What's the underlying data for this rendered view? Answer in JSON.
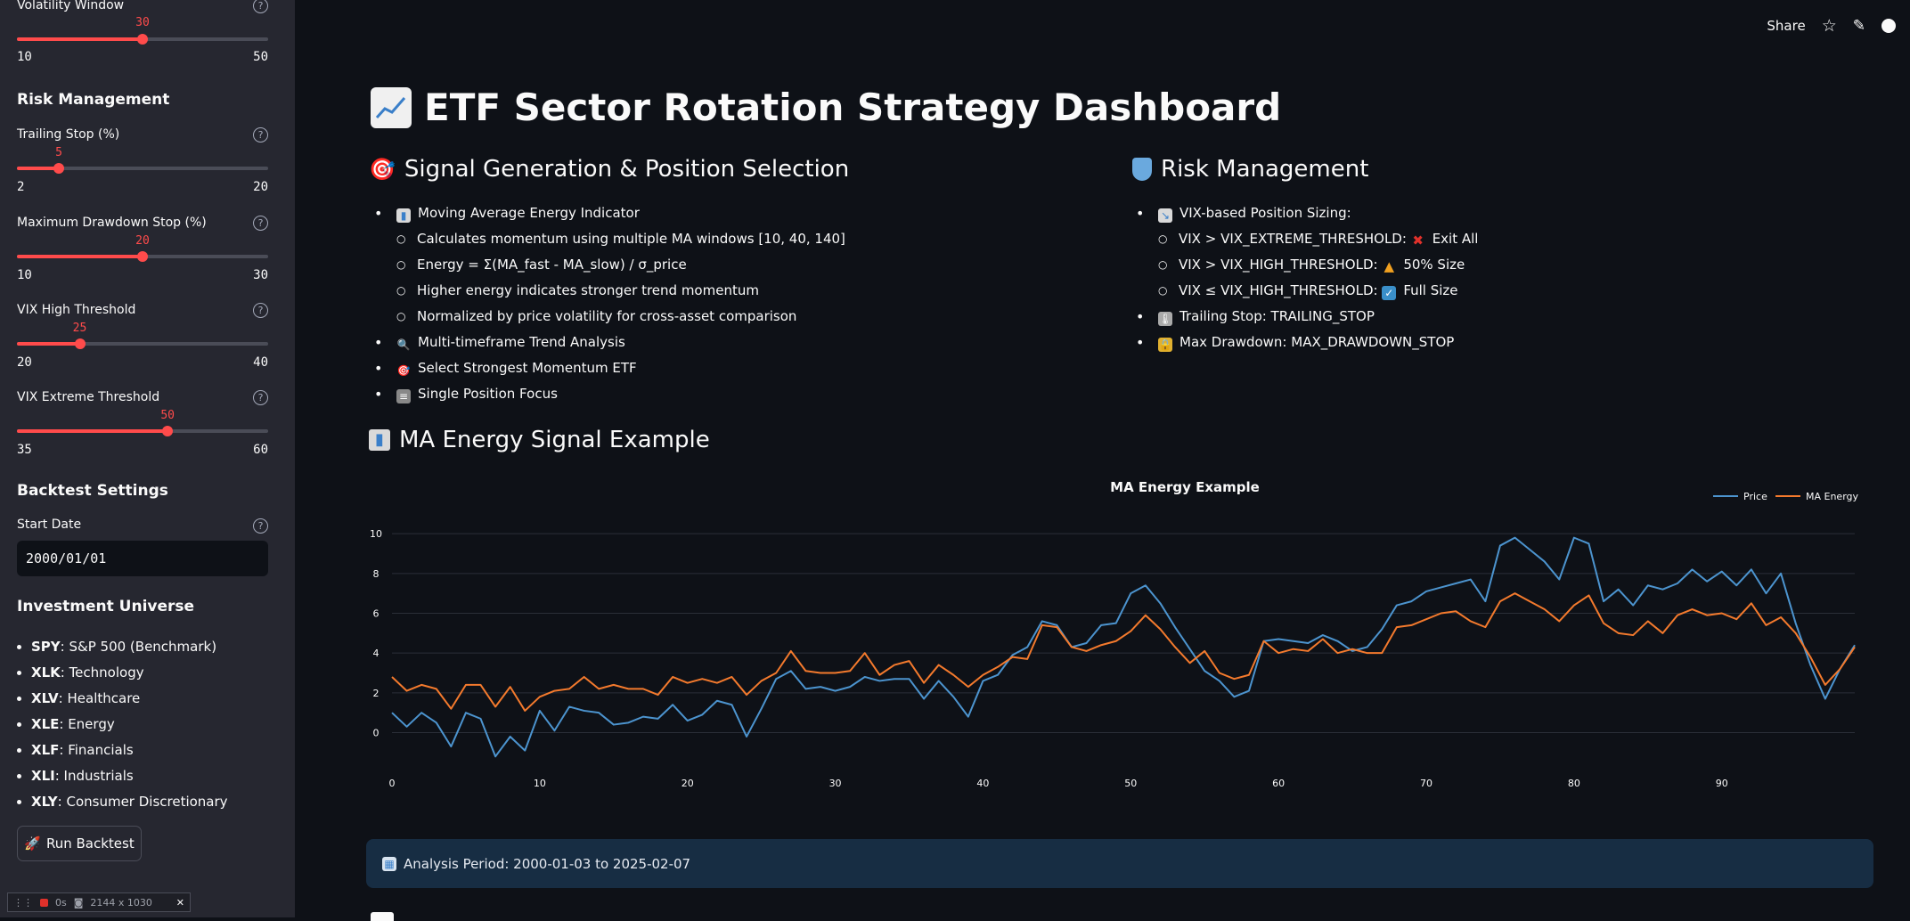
{
  "sidebar": {
    "volatility_window": {
      "label": "Volatility Window",
      "value": "30",
      "min": "10",
      "max": "50",
      "fraction": 0.5
    },
    "risk_heading": "Risk Management",
    "trailing_stop": {
      "label": "Trailing Stop (%)",
      "value": "5",
      "min": "2",
      "max": "20",
      "fraction": 0.1667
    },
    "max_drawdown": {
      "label": "Maximum Drawdown Stop (%)",
      "value": "20",
      "min": "10",
      "max": "30",
      "fraction": 0.5
    },
    "vix_high": {
      "label": "VIX High Threshold",
      "value": "25",
      "min": "20",
      "max": "40",
      "fraction": 0.25
    },
    "vix_extreme": {
      "label": "VIX Extreme Threshold",
      "value": "50",
      "min": "35",
      "max": "60",
      "fraction": 0.6
    },
    "backtest_heading": "Backtest Settings",
    "start_date_label": "Start Date",
    "start_date_value": "2000/01/01",
    "universe_heading": "Investment Universe",
    "universe": [
      {
        "ticker": "SPY",
        "name": ": S&P 500 (Benchmark)"
      },
      {
        "ticker": "XLK",
        "name": ": Technology"
      },
      {
        "ticker": "XLV",
        "name": ": Healthcare"
      },
      {
        "ticker": "XLE",
        "name": ": Energy"
      },
      {
        "ticker": "XLF",
        "name": ": Financials"
      },
      {
        "ticker": "XLI",
        "name": ": Industrials"
      },
      {
        "ticker": "XLY",
        "name": ": Consumer Discretionary"
      }
    ],
    "run_button": "Run Backtest",
    "recorder": {
      "time": "0s",
      "size": "2144 x 1030"
    }
  },
  "toolbar": {
    "share": "Share"
  },
  "main": {
    "title": "ETF Sector Rotation Strategy Dashboard",
    "signal_section": {
      "title": "Signal Generation & Position Selection",
      "items": [
        {
          "level": 1,
          "icon": "chart-icon",
          "text": "Moving Average Energy Indicator"
        },
        {
          "level": 2,
          "text": "Calculates momentum using multiple MA windows [10, 40, 140]"
        },
        {
          "level": 2,
          "text": "Energy = Σ(MA_fast - MA_slow) / σ_price"
        },
        {
          "level": 2,
          "text": "Higher energy indicates stronger trend momentum"
        },
        {
          "level": 2,
          "text": "Normalized by price volatility for cross-asset comparison"
        },
        {
          "level": 1,
          "icon": "magnifier-icon",
          "text": "Multi-timeframe Trend Analysis"
        },
        {
          "level": 1,
          "icon": "target-icon",
          "text": "Select Strongest Momentum ETF"
        },
        {
          "level": 1,
          "icon": "abacus-icon",
          "text": "Single Position Focus"
        }
      ]
    },
    "risk_section": {
      "title": "Risk Management",
      "items": [
        {
          "level": 1,
          "icon": "chart-down-icon",
          "text": "VIX-based Position Sizing:"
        },
        {
          "level": 2,
          "text": "VIX > VIX_EXTREME_THRESHOLD: ",
          "icon": "cross-icon",
          "suffix": "Exit All"
        },
        {
          "level": 2,
          "text": "VIX > VIX_HIGH_THRESHOLD: ",
          "icon": "warning-icon",
          "suffix": "50% Size"
        },
        {
          "level": 2,
          "text": "VIX ≤ VIX_HIGH_THRESHOLD: ",
          "icon": "check-icon",
          "suffix": "Full Size"
        },
        {
          "level": 1,
          "icon": "thermometer-icon",
          "text": "Trailing Stop: TRAILING_STOP"
        },
        {
          "level": 1,
          "icon": "lock-icon",
          "text": "Max Drawdown: MAX_DRAWDOWN_STOP"
        }
      ]
    },
    "chart_section_title": "MA Energy Signal Example",
    "info_text": "Analysis Period: 2000-01-03 to 2025-02-07"
  },
  "colors": {
    "accent": "#ff4b4b",
    "price": "#4c94cf",
    "energy": "#f47a2d",
    "info_bg": "#172d43"
  },
  "chart_data": {
    "type": "line",
    "title": "MA Energy Example",
    "legend_position": "top-right",
    "xlim": [
      0,
      99
    ],
    "ylim": [
      -1.5,
      10.5
    ],
    "xticks": [
      0,
      10,
      20,
      30,
      40,
      50,
      60,
      70,
      80,
      90
    ],
    "yticks": [
      0,
      2,
      4,
      6,
      8,
      10
    ],
    "grid": "horizontal",
    "series": [
      {
        "name": "Price",
        "color": "#4c94cf",
        "values": [
          1.0,
          0.3,
          1.0,
          0.5,
          -0.7,
          1.0,
          0.7,
          -1.2,
          -0.2,
          -0.9,
          1.1,
          0.1,
          1.3,
          1.1,
          1.0,
          0.4,
          0.5,
          0.8,
          0.7,
          1.4,
          0.6,
          0.9,
          1.6,
          1.4,
          -0.2,
          1.2,
          2.7,
          3.1,
          2.2,
          2.3,
          2.1,
          2.3,
          2.8,
          2.6,
          2.7,
          2.7,
          1.7,
          2.6,
          1.8,
          0.8,
          2.6,
          2.9,
          3.9,
          4.3,
          5.6,
          5.4,
          4.3,
          4.5,
          5.4,
          5.5,
          7.0,
          7.4,
          6.5,
          5.3,
          4.2,
          3.1,
          2.6,
          1.8,
          2.1,
          4.6,
          4.7,
          4.6,
          4.5,
          4.9,
          4.6,
          4.1,
          4.3,
          5.2,
          6.4,
          6.6,
          7.1,
          7.3,
          7.5,
          7.7,
          6.6,
          9.4,
          9.8,
          9.2,
          8.6,
          7.7,
          9.8,
          9.5,
          6.6,
          7.2,
          6.4,
          7.4,
          7.2,
          7.5,
          8.2,
          7.6,
          8.1,
          7.4,
          8.2,
          7.0,
          8.0,
          5.5,
          3.4,
          1.7,
          3.2,
          4.4
        ]
      },
      {
        "name": "MA Energy",
        "color": "#f47a2d",
        "values": [
          2.8,
          2.1,
          2.4,
          2.2,
          1.2,
          2.4,
          2.4,
          1.3,
          2.3,
          1.1,
          1.8,
          2.1,
          2.2,
          2.8,
          2.2,
          2.4,
          2.2,
          2.2,
          1.9,
          2.8,
          2.5,
          2.7,
          2.5,
          2.8,
          1.9,
          2.6,
          3.0,
          4.1,
          3.1,
          3.0,
          3.0,
          3.1,
          4.0,
          2.9,
          3.4,
          3.6,
          2.5,
          3.4,
          2.9,
          2.3,
          2.9,
          3.3,
          3.8,
          3.7,
          5.4,
          5.3,
          4.3,
          4.1,
          4.4,
          4.6,
          5.1,
          5.9,
          5.2,
          4.3,
          3.5,
          4.1,
          3.0,
          2.7,
          2.9,
          4.6,
          4.0,
          4.2,
          4.1,
          4.7,
          4.0,
          4.2,
          4.0,
          4.0,
          5.3,
          5.4,
          5.7,
          6.0,
          6.1,
          5.6,
          5.3,
          6.6,
          7.0,
          6.6,
          6.2,
          5.6,
          6.4,
          6.9,
          5.5,
          5.0,
          4.9,
          5.6,
          5.0,
          5.9,
          6.2,
          5.9,
          6.0,
          5.7,
          6.5,
          5.4,
          5.8,
          5.0,
          3.8,
          2.4,
          3.2,
          4.3
        ]
      }
    ]
  }
}
